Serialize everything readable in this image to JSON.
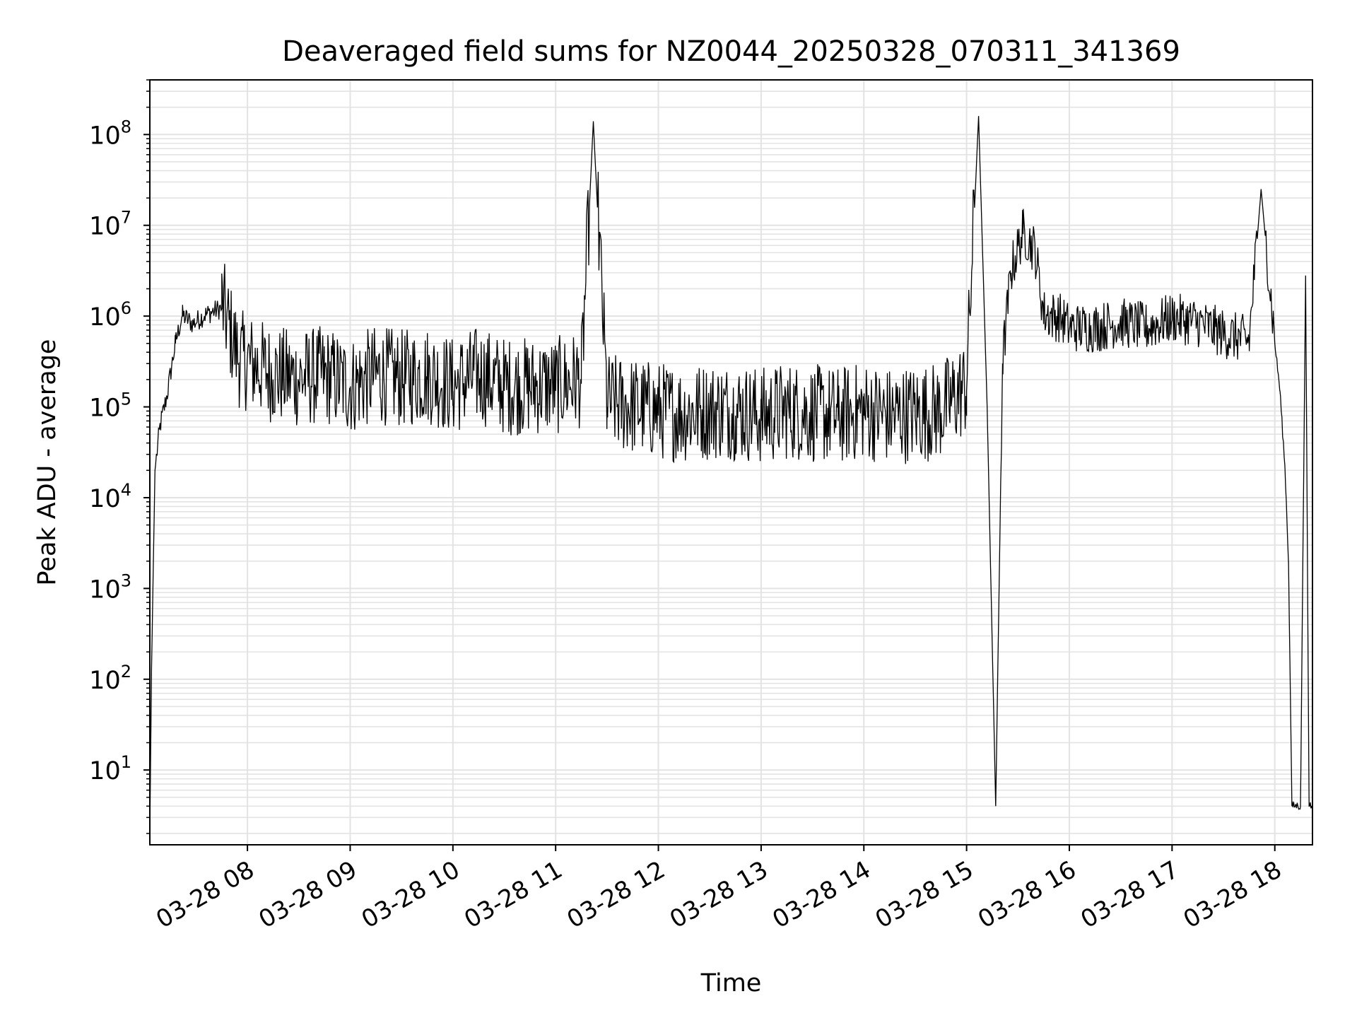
{
  "chart_data": {
    "type": "line",
    "title": "Deaveraged field sums for NZ0044_20250328_070311_341369",
    "xlabel": "Time",
    "ylabel": "Peak ADU - average",
    "yscale": "log",
    "ylim": [
      1.5,
      400000000.0
    ],
    "xlim": [
      "03-28 07:03",
      "03-28 18:22"
    ],
    "grid": "on (major and minor)",
    "x_ticks": [
      "03-28 08",
      "03-28 09",
      "03-28 10",
      "03-28 11",
      "03-28 12",
      "03-28 13",
      "03-28 14",
      "03-28 15",
      "03-28 16",
      "03-28 17",
      "03-28 18"
    ],
    "y_ticks": [
      "10",
      "10",
      "10",
      "10",
      "10",
      "10",
      "10",
      "10"
    ],
    "y_tick_exponents": [
      "1",
      "2",
      "3",
      "4",
      "5",
      "6",
      "7",
      "8"
    ],
    "series": [
      {
        "color": "#000000",
        "x": [
          "03-28 07:03",
          "03-28 07:04",
          "03-28 07:06",
          "03-28 07:09",
          "03-28 07:13",
          "03-28 07:18",
          "03-28 07:22",
          "03-28 07:28",
          "03-28 07:35",
          "03-28 07:45",
          "03-28 07:55",
          "03-28 08:05",
          "03-28 08:15",
          "03-28 08:30",
          "03-28 08:45",
          "03-28 09:00",
          "03-28 09:15",
          "03-28 09:30",
          "03-28 09:45",
          "03-28 10:00",
          "03-28 10:15",
          "03-28 10:30",
          "03-28 10:45",
          "03-28 11:00",
          "03-28 11:15",
          "03-28 11:22",
          "03-28 11:30",
          "03-28 11:45",
          "03-28 12:00",
          "03-28 12:15",
          "03-28 12:30",
          "03-28 12:45",
          "03-28 13:00",
          "03-28 13:15",
          "03-28 13:30",
          "03-28 13:45",
          "03-28 14:00",
          "03-28 14:15",
          "03-28 14:30",
          "03-28 14:45",
          "03-28 15:00",
          "03-28 15:07",
          "03-28 15:12",
          "03-28 15:17",
          "03-28 15:21",
          "03-28 15:26",
          "03-28 15:33",
          "03-28 15:40",
          "03-28 15:45",
          "03-28 15:55",
          "03-28 16:00",
          "03-28 16:15",
          "03-28 16:30",
          "03-28 16:45",
          "03-28 17:00",
          "03-28 17:15",
          "03-28 17:30",
          "03-28 17:45",
          "03-28 17:52",
          "03-28 18:00",
          "03-28 18:03",
          "03-28 18:06",
          "03-28 18:08",
          "03-28 18:10",
          "03-28 18:15",
          "03-28 18:18",
          "03-28 18:20",
          "03-28 18:22"
        ],
        "y": [
          2,
          130,
          20000,
          60000,
          130000,
          500000,
          1000000,
          800000,
          1000000,
          1200000,
          300000,
          250000,
          200000,
          180000,
          200000,
          150000,
          200000,
          180000,
          200000,
          150000,
          200000,
          150000,
          150000,
          150000,
          180000,
          140000000,
          100000,
          90000,
          80000,
          75000,
          80000,
          80000,
          70000,
          80000,
          75000,
          70000,
          80000,
          70000,
          75000,
          80000,
          150000,
          160000000,
          100000,
          4,
          300000,
          3000000,
          8000000,
          5000000,
          1000000,
          900000,
          700000,
          700000,
          800000,
          700000,
          900000,
          800000,
          600000,
          500000,
          25000000,
          500000,
          150000,
          20000,
          2000,
          4,
          4,
          2800000,
          4,
          4
        ]
      }
    ]
  }
}
